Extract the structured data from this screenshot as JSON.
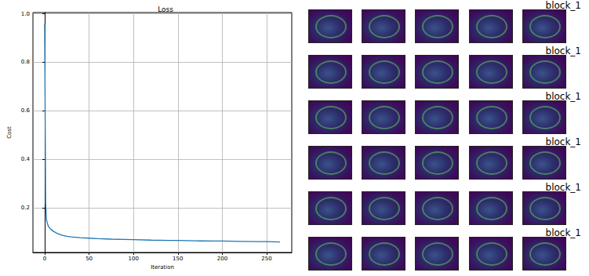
{
  "chart_data": {
    "type": "line",
    "title": "Loss",
    "x_label": "Iteration",
    "y_label": "Cost",
    "x": [
      0,
      1,
      2,
      3,
      4,
      5,
      7,
      10,
      15,
      20,
      25,
      30,
      40,
      50,
      60,
      75,
      90,
      100,
      120,
      140,
      150,
      170,
      190,
      200,
      220,
      240,
      250,
      265
    ],
    "series": [
      {
        "name": "Loss",
        "color": "#1f77b4",
        "values": [
          0.96,
          0.22,
          0.15,
          0.135,
          0.125,
          0.118,
          0.11,
          0.102,
          0.092,
          0.086,
          0.082,
          0.079,
          0.076,
          0.074,
          0.072,
          0.07,
          0.069,
          0.068,
          0.066,
          0.065,
          0.065,
          0.063,
          0.062,
          0.062,
          0.061,
          0.06,
          0.06,
          0.058
        ]
      }
    ],
    "xlim": [
      -13.25,
      278.25
    ],
    "xticks": [
      0,
      50,
      100,
      150,
      200,
      250
    ],
    "ylim": [
      0.015,
      1.005
    ],
    "yticks": [
      0.2,
      0.4,
      0.6,
      0.8,
      {
        "value": 1,
        "label": "1.0"
      }
    ],
    "grid": true
  },
  "feature_maps": {
    "row_labels": [
      "block_1",
      "block_1",
      "block_1",
      "block_1",
      "block_1",
      "block_1"
    ],
    "columns": 5
  }
}
